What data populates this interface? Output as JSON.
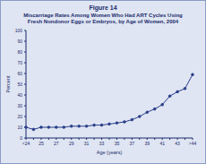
{
  "chart_data": {
    "type": "line",
    "title": "Figure 14",
    "subtitle": "Miscarriage Rates Among Women Who Had ART Cycles Using Fresh Nondonor Eggs or Embryos, by Age of Women, 2004",
    "x_label": "Age (years)",
    "y_label": "Percent",
    "categories": [
      "<24",
      null,
      "25",
      null,
      "27",
      null,
      "29",
      null,
      "31",
      null,
      "33",
      null,
      "35",
      null,
      "37",
      null,
      "39",
      null,
      "41",
      null,
      "43",
      null,
      ">44"
    ],
    "values": [
      10,
      8,
      10,
      10,
      10,
      10,
      11,
      11,
      11,
      12,
      12,
      13,
      14,
      15,
      17,
      20,
      24,
      27,
      31,
      39,
      43,
      46,
      59
    ],
    "color": "#2b3f8c",
    "marker": "circle",
    "ylim": [
      0,
      100
    ],
    "yticks": [
      0,
      10,
      20,
      30,
      40,
      50,
      60,
      70,
      80,
      90,
      100
    ],
    "grid": false
  }
}
